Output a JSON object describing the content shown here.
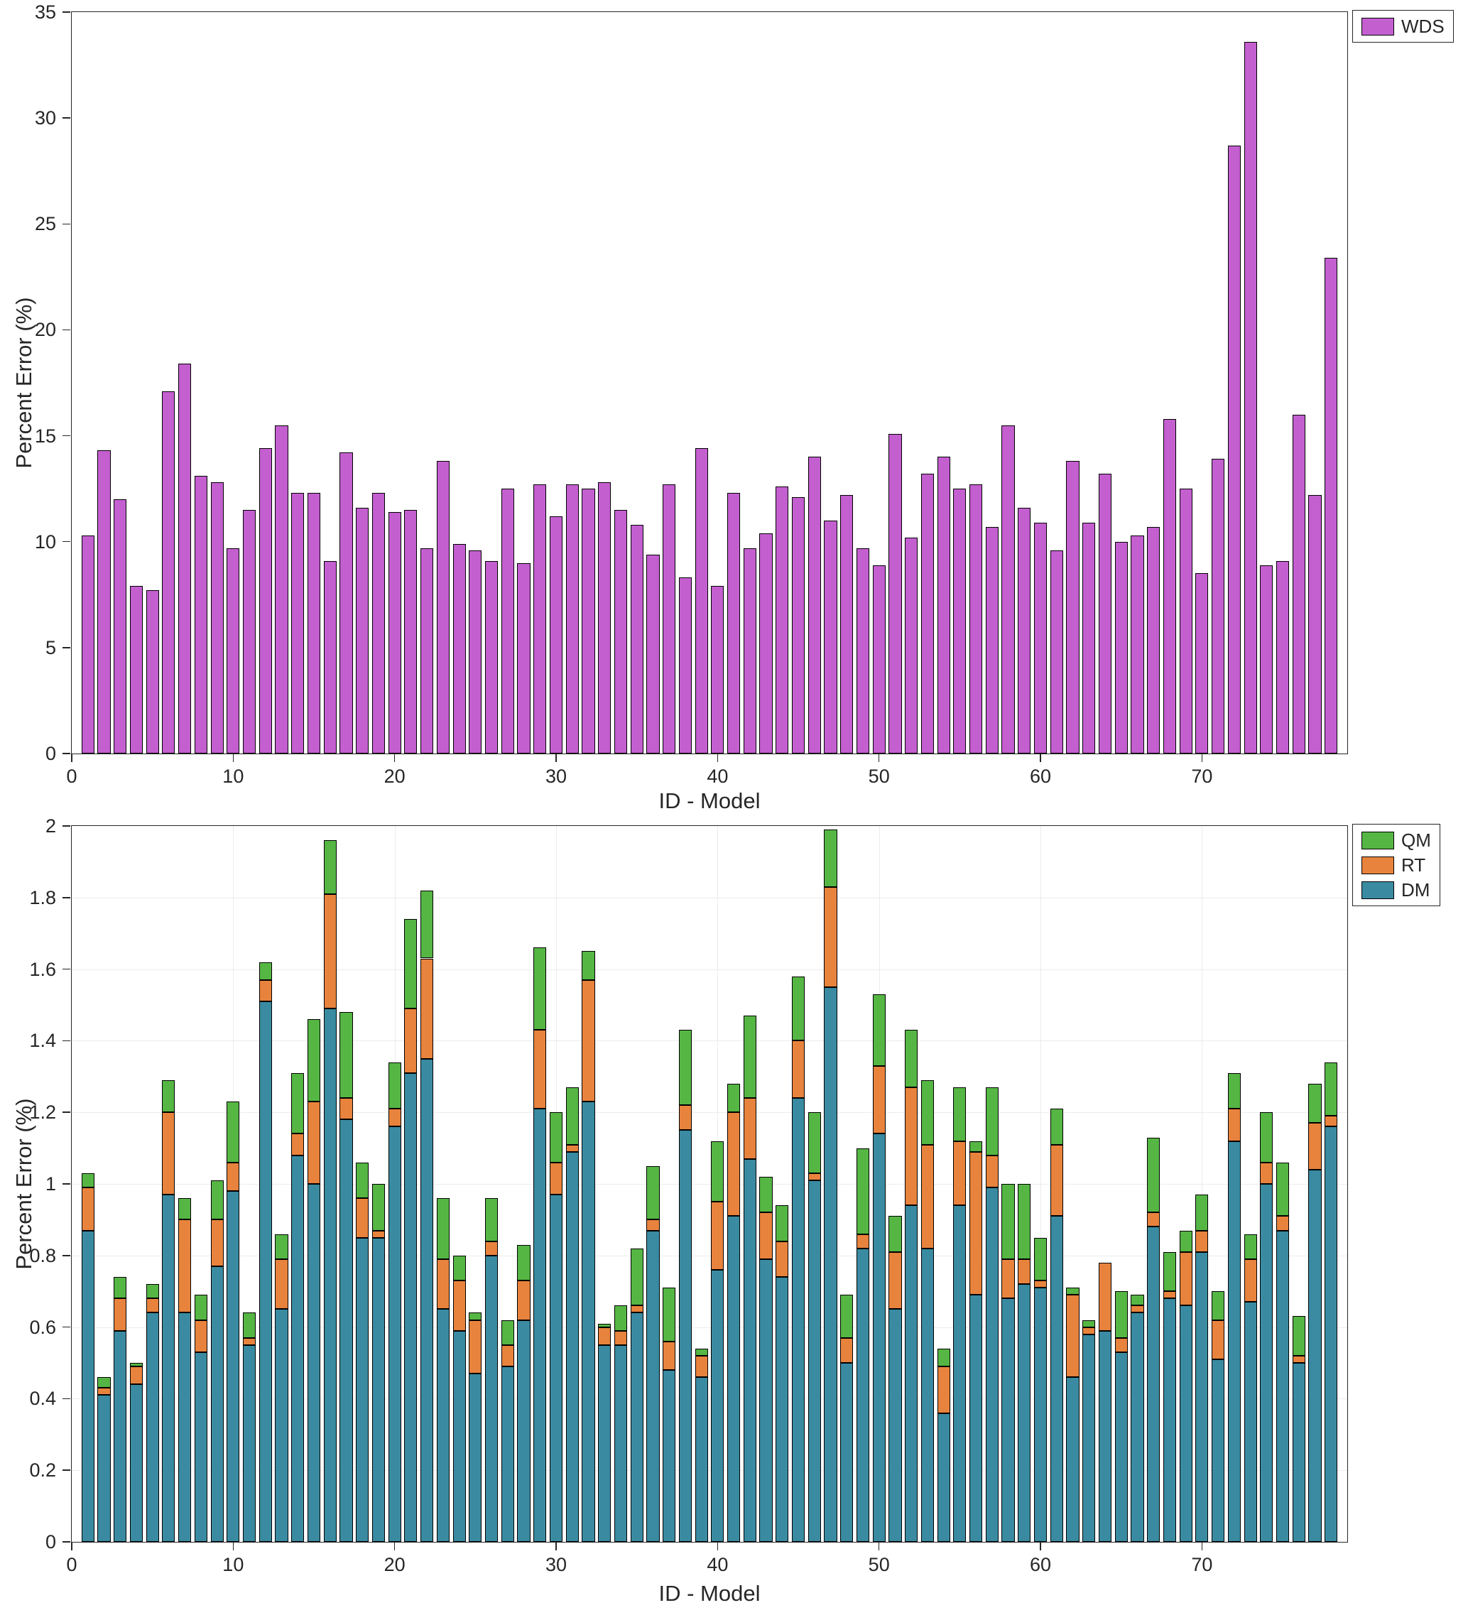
{
  "chart_data": [
    {
      "type": "bar",
      "title": "",
      "xlabel": "ID - Model",
      "ylabel": "Percent Error (%)",
      "legend": [
        "WDS"
      ],
      "legend_position": "top-right-outside",
      "grid": false,
      "bar_color": "#c returned",
      "x_range": [
        1,
        78
      ],
      "xlim": [
        0,
        79
      ],
      "ylim": [
        0,
        35
      ],
      "xticks": [
        0,
        10,
        20,
        30,
        40,
        50,
        60,
        70
      ],
      "yticks": [
        0,
        5,
        10,
        15,
        20,
        25,
        30,
        35
      ],
      "values": [
        10.3,
        14.3,
        12.0,
        7.9,
        7.7,
        17.1,
        18.4,
        13.1,
        12.8,
        9.7,
        11.5,
        14.4,
        15.5,
        12.3,
        12.3,
        9.1,
        14.2,
        11.6,
        12.3,
        11.4,
        11.5,
        9.7,
        13.8,
        9.9,
        9.6,
        9.1,
        12.5,
        9.0,
        12.7,
        11.2,
        12.7,
        12.5,
        12.8,
        11.5,
        10.8,
        9.4,
        12.7,
        8.3,
        14.4,
        7.9,
        12.3,
        9.7,
        10.4,
        12.6,
        12.1,
        14.0,
        11.0,
        12.2,
        9.7,
        8.9,
        15.1,
        10.2,
        13.2,
        14.0,
        12.5,
        12.7,
        10.7,
        15.5,
        11.6,
        10.9,
        9.6,
        13.8,
        10.9,
        13.2,
        10.0,
        10.3,
        10.7,
        15.8,
        12.5,
        8.5,
        13.9,
        28.7,
        33.6,
        8.9,
        9.1,
        16.0,
        12.2,
        23.4
      ]
    },
    {
      "type": "bar",
      "stacked": true,
      "title": "",
      "xlabel": "ID - Model",
      "ylabel": "Percent Error (%)",
      "legend": [
        "QM",
        "RT",
        "DM"
      ],
      "legend_position": "top-right-outside",
      "grid": true,
      "x_range": [
        1,
        78
      ],
      "xlim": [
        0,
        79
      ],
      "ylim": [
        0,
        2
      ],
      "xticks": [
        0,
        10,
        20,
        30,
        40,
        50,
        60,
        70
      ],
      "yticks": [
        0,
        0.2,
        0.4,
        0.6,
        0.8,
        1,
        1.2,
        1.4,
        1.6,
        1.8,
        2
      ],
      "series": [
        {
          "name": "DM",
          "color": "#3a8ba1",
          "values": [
            0.87,
            0.41,
            0.59,
            0.44,
            0.64,
            0.97,
            0.64,
            0.53,
            0.77,
            0.98,
            0.55,
            1.51,
            0.65,
            1.08,
            1.0,
            1.49,
            1.18,
            0.85,
            0.85,
            1.16,
            1.31,
            1.35,
            0.65,
            0.59,
            0.47,
            0.8,
            0.49,
            0.62,
            1.21,
            0.97,
            1.09,
            1.23,
            0.55,
            0.55,
            0.64,
            0.87,
            0.48,
            1.15,
            0.46,
            0.76,
            0.91,
            1.07,
            0.79,
            0.74,
            1.24,
            1.01,
            1.55,
            0.5,
            0.82,
            1.14,
            0.65,
            0.94,
            0.82,
            0.36,
            0.94,
            0.69,
            0.99,
            0.68,
            0.72,
            0.71,
            0.91,
            0.46,
            0.58,
            0.59,
            0.53,
            0.64,
            0.88,
            0.68,
            0.66,
            0.81,
            0.51,
            1.12,
            0.67,
            1.0,
            0.87,
            0.5,
            1.04,
            1.16
          ]
        },
        {
          "name": "RT",
          "color": "#e8833d",
          "values": [
            0.12,
            0.02,
            0.09,
            0.05,
            0.04,
            0.23,
            0.26,
            0.09,
            0.13,
            0.08,
            0.02,
            0.06,
            0.14,
            0.06,
            0.23,
            0.32,
            0.06,
            0.11,
            0.02,
            0.05,
            0.18,
            0.28,
            0.14,
            0.14,
            0.15,
            0.04,
            0.06,
            0.11,
            0.22,
            0.09,
            0.02,
            0.34,
            0.05,
            0.04,
            0.02,
            0.03,
            0.08,
            0.07,
            0.06,
            0.19,
            0.29,
            0.17,
            0.13,
            0.1,
            0.16,
            0.02,
            0.28,
            0.07,
            0.04,
            0.19,
            0.16,
            0.33,
            0.29,
            0.13,
            0.18,
            0.4,
            0.09,
            0.11,
            0.07,
            0.02,
            0.2,
            0.23,
            0.02,
            0.19,
            0.04,
            0.02,
            0.04,
            0.02,
            0.15,
            0.06,
            0.11,
            0.09,
            0.12,
            0.06,
            0.04,
            0.02,
            0.13,
            0.03
          ]
        },
        {
          "name": "QM",
          "color": "#55b644",
          "values": [
            0.04,
            0.03,
            0.06,
            0.01,
            0.04,
            0.09,
            0.06,
            0.07,
            0.11,
            0.17,
            0.07,
            0.05,
            0.07,
            0.17,
            0.23,
            0.15,
            0.24,
            0.1,
            0.13,
            0.13,
            0.25,
            0.19,
            0.17,
            0.07,
            0.02,
            0.12,
            0.07,
            0.1,
            0.23,
            0.14,
            0.16,
            0.08,
            0.01,
            0.07,
            0.16,
            0.15,
            0.15,
            0.21,
            0.02,
            0.17,
            0.08,
            0.23,
            0.1,
            0.1,
            0.18,
            0.17,
            0.16,
            0.12,
            0.24,
            0.2,
            0.1,
            0.16,
            0.18,
            0.05,
            0.15,
            0.03,
            0.19,
            0.21,
            0.21,
            0.12,
            0.1,
            0.02,
            0.02,
            0.0,
            0.13,
            0.03,
            0.21,
            0.11,
            0.06,
            0.1,
            0.08,
            0.1,
            0.07,
            0.14,
            0.15,
            0.11,
            0.11,
            0.15
          ]
        }
      ]
    }
  ]
}
